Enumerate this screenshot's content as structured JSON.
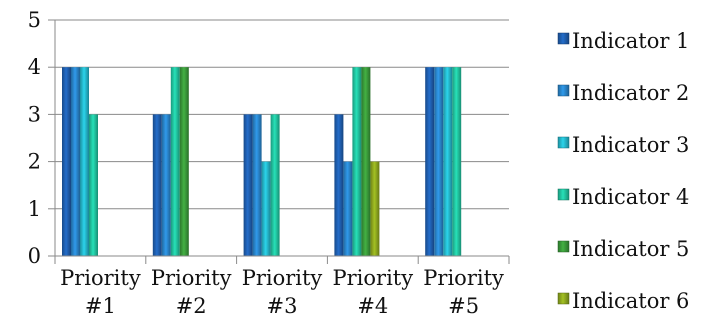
{
  "chart_data": {
    "type": "bar",
    "title": "",
    "xlabel": "",
    "ylabel": "",
    "categories": [
      [
        "Priority",
        "#1"
      ],
      [
        "Priority",
        "#2"
      ],
      [
        "Priority",
        "#3"
      ],
      [
        "Priority",
        "#4"
      ],
      [
        "Priority",
        "#5"
      ]
    ],
    "ylim": [
      0,
      5
    ],
    "yticks": [
      "0",
      "1",
      "2",
      "3",
      "4",
      "5"
    ],
    "grid": true,
    "legend_position": "right",
    "series": [
      {
        "name": "Indicator 1",
        "color": "#1f5fb0",
        "values": [
          4,
          3,
          3,
          3,
          4
        ]
      },
      {
        "name": "Indicator 2",
        "color": "#2a86cc",
        "values": [
          4,
          3,
          3,
          2,
          4
        ]
      },
      {
        "name": "Indicator 3",
        "color": "#25b8cc",
        "values": [
          4,
          null,
          2,
          null,
          4
        ]
      },
      {
        "name": "Indicator 4",
        "color": "#22c4a0",
        "values": [
          3,
          4,
          3,
          4,
          4
        ]
      },
      {
        "name": "Indicator 5",
        "color": "#3a9a3a",
        "values": [
          null,
          4,
          null,
          4,
          null
        ]
      },
      {
        "name": "Indicator 6",
        "color": "#8ea81e",
        "values": [
          null,
          null,
          null,
          2,
          null
        ]
      }
    ]
  }
}
